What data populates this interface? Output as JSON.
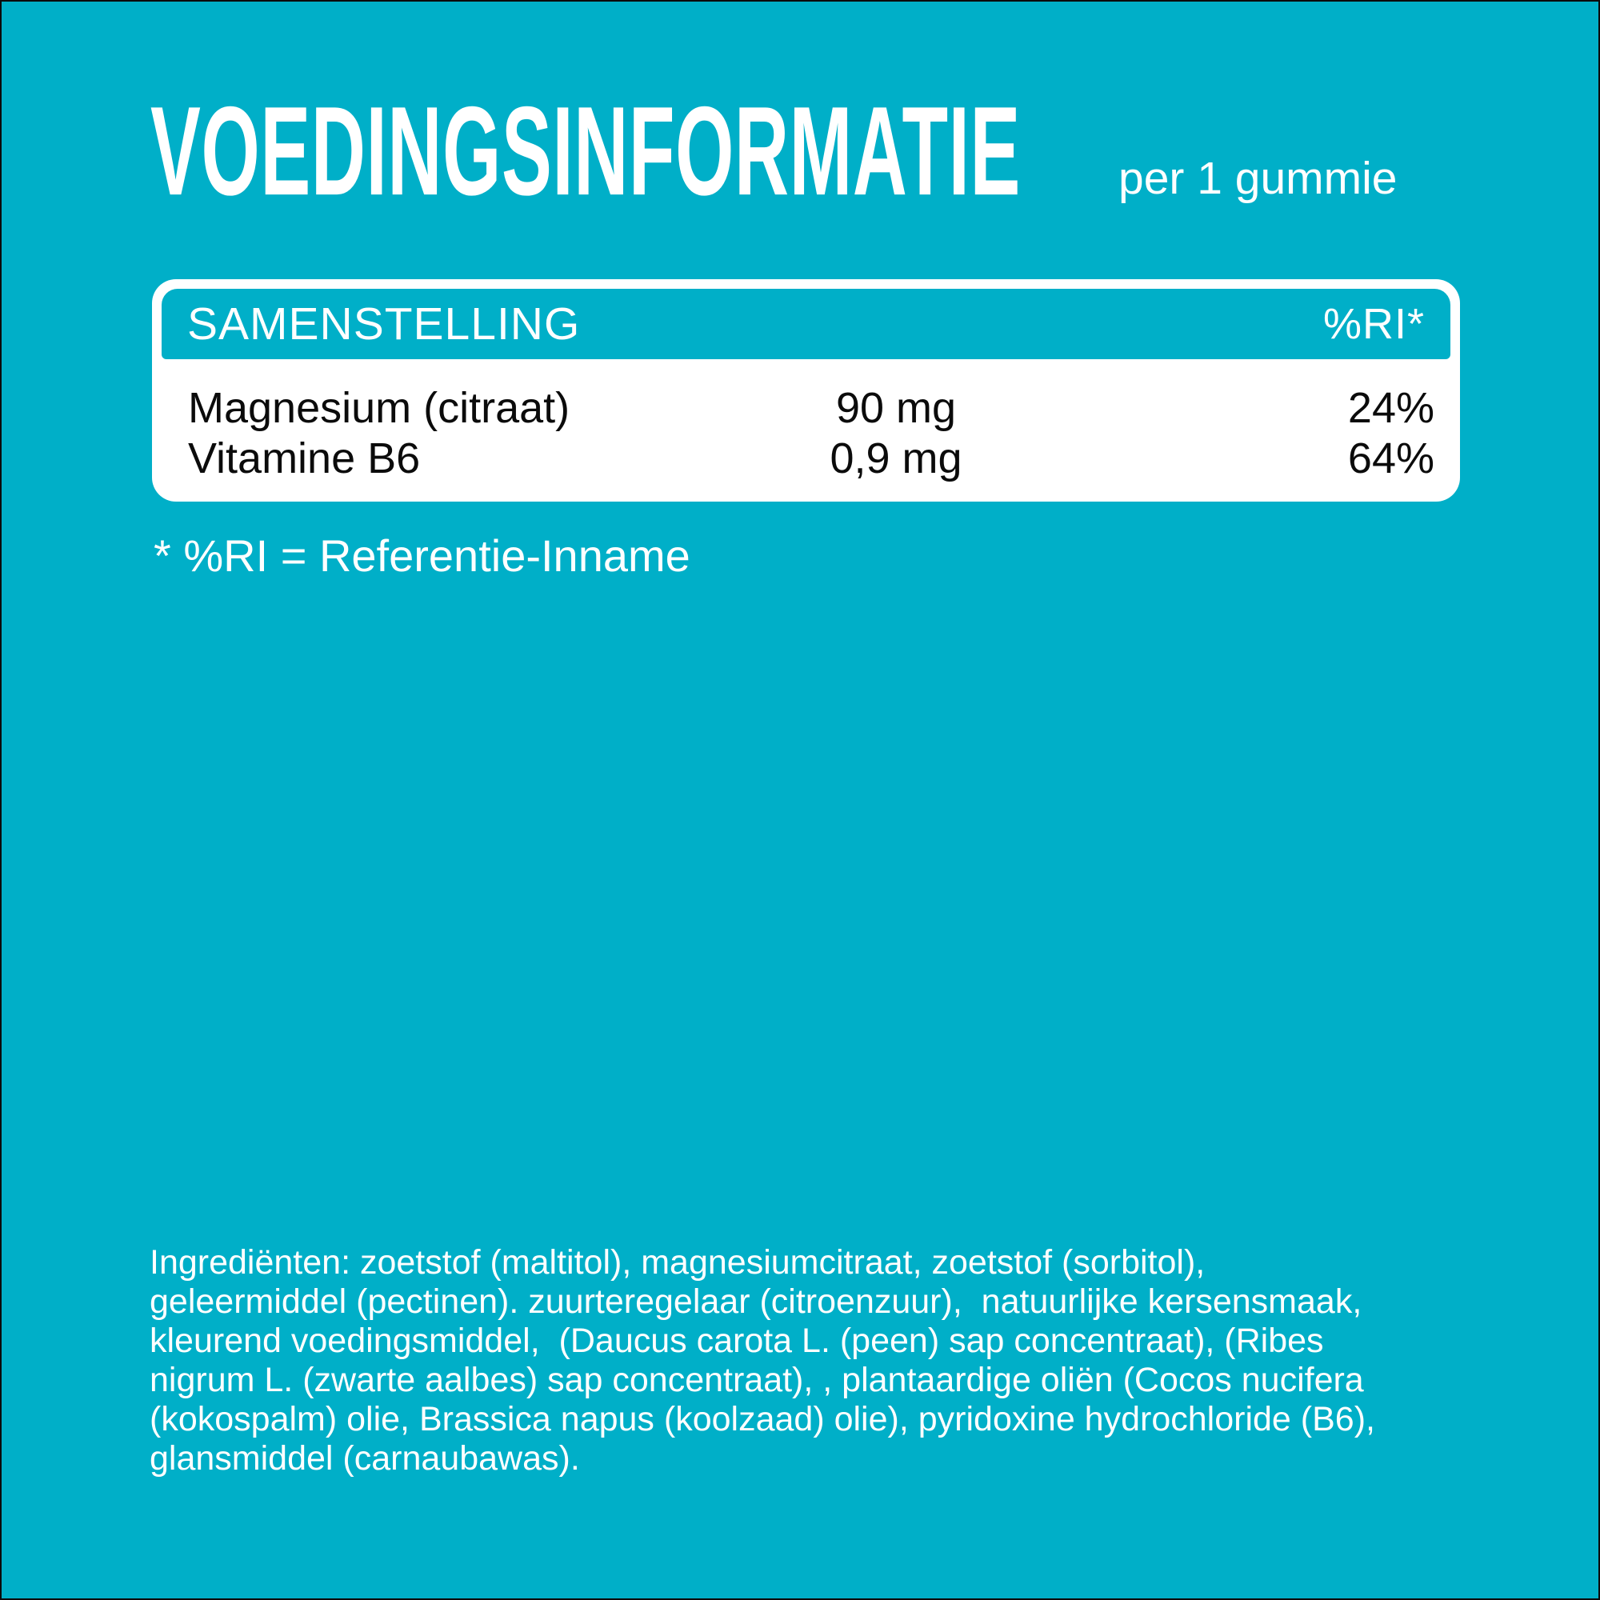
{
  "colors": {
    "background": "#00AFC8",
    "panel": "#FFFFFF",
    "ink": "#0B0B0B",
    "text_on_teal": "#FFFFFF"
  },
  "header": {
    "title": "VOEDINGSINFORMATIE",
    "serving": "per 1 gummie"
  },
  "table": {
    "header": {
      "composition_label": "SAMENSTELLING",
      "ri_label": "%RI*"
    },
    "rows": [
      {
        "name": "Magnesium (citraat)",
        "amount": "90 mg",
        "ri": "24%"
      },
      {
        "name": "Vitamine B6",
        "amount": "0,9 mg",
        "ri": "64%"
      }
    ]
  },
  "footnote": "* %RI = Referentie-Inname",
  "ingredients": "Ingrediënten: zoetstof (maltitol), magnesiumcitraat, zoetstof (sorbitol),\ngeleermiddel (pectinen). zuurteregelaar (citroenzuur),  natuurlijke kersensmaak,\nkleurend voedingsmiddel,  (Daucus carota L. (peen) sap concentraat), (Ribes\nnigrum L. (zwarte aalbes) sap concentraat), , plantaardige oliën (Cocos nucifera\n(kokospalm) olie, Brassica napus (koolzaad) olie), pyridoxine hydrochloride (B6),\nglansmiddel (carnaubawas)."
}
